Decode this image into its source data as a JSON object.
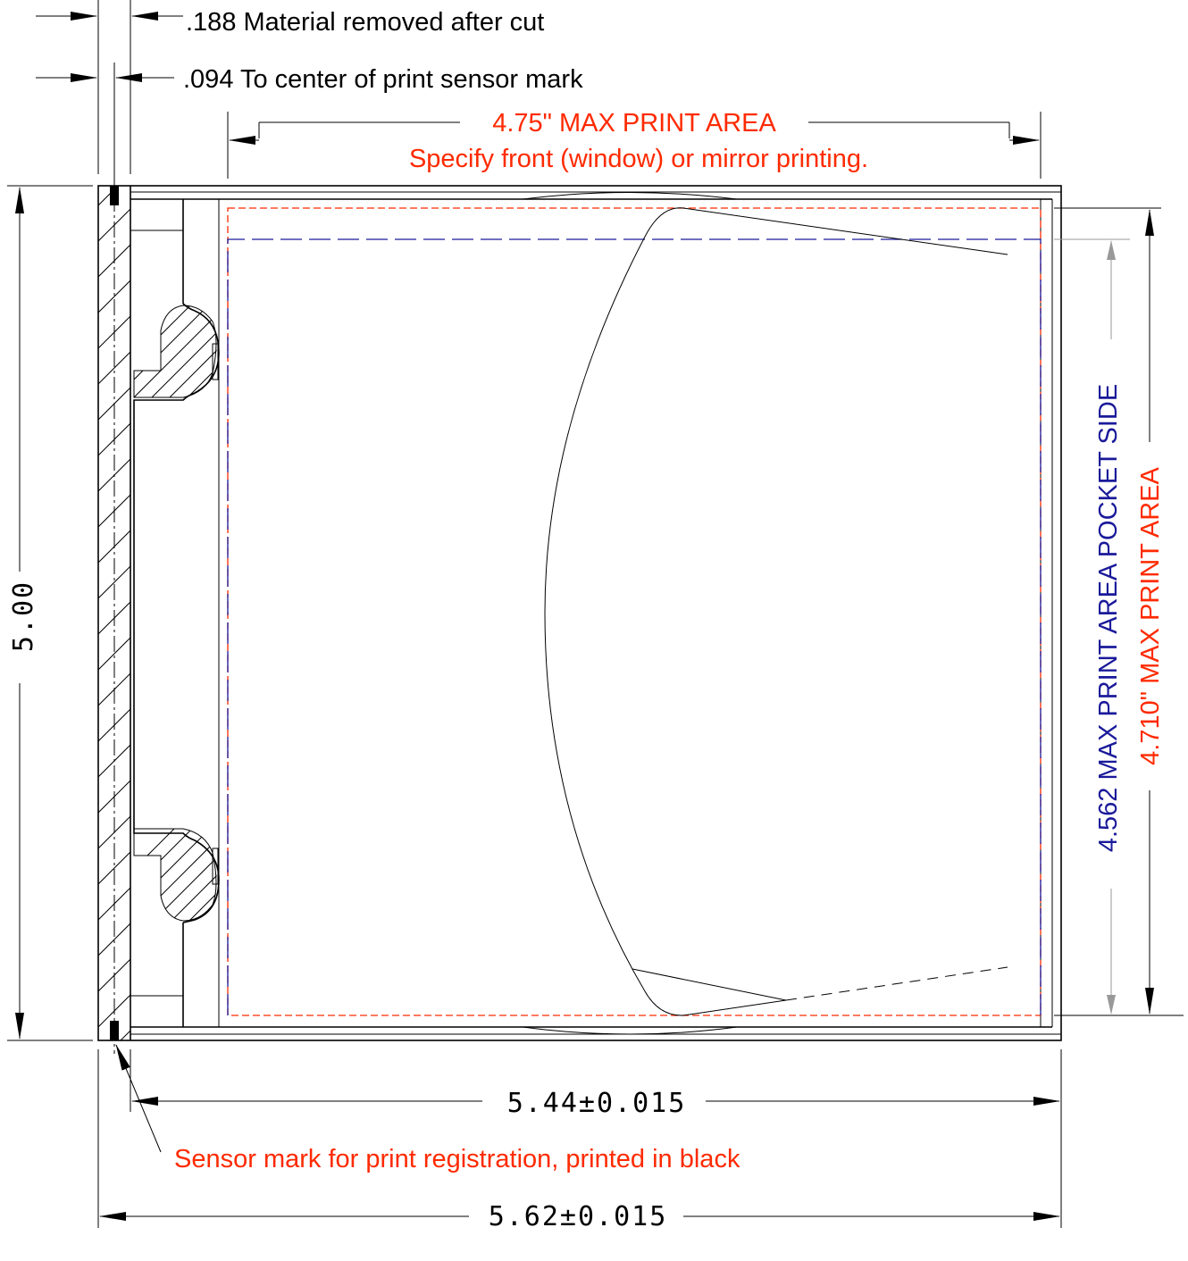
{
  "drawing": {
    "notes": {
      "material_removed": ".188 Material removed after cut",
      "sensor_center": ".094 To center of print sensor mark",
      "sensor_mark": "Sensor mark for print registration, printed in black"
    },
    "print_area": {
      "width_label": "4.75\" MAX PRINT AREA",
      "print_side_note": "Specify front (window) or mirror printing.",
      "height_label": "4.710\" MAX PRINT AREA",
      "pocket_side_label": "4.562 MAX PRINT AREA POCKET SIDE"
    },
    "dimensions": {
      "height": "5.00",
      "inner_width": "5.44±0.015",
      "overall_width": "5.62±0.015"
    },
    "colors": {
      "outline": "#000000",
      "print_area": "#ff2a00",
      "pocket_side": "#1a1a9a"
    }
  }
}
